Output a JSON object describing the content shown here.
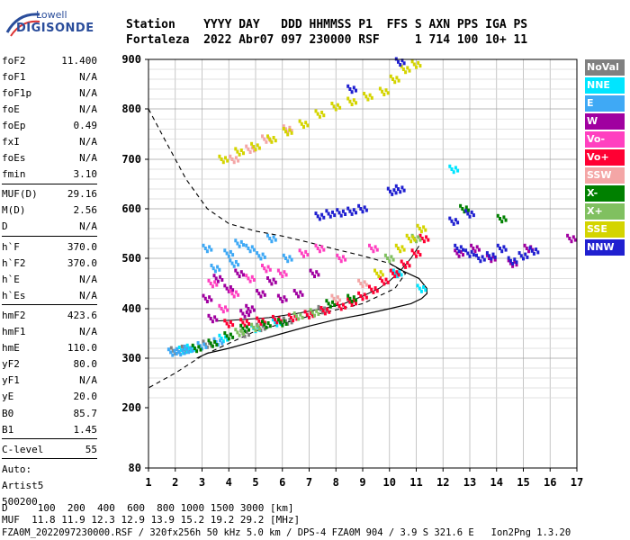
{
  "logo": {
    "brand": "Lowell",
    "product": "DIGISONDE"
  },
  "header": {
    "line1": "Station    YYYY DAY   DDD HHMMSS P1  FFS S AXN PPS IGA PS",
    "line2": "Fortaleza  2022 Abr07 097 230000 RSF     1 714 100 10+ 11"
  },
  "params": [
    {
      "name": "foF2",
      "value": "11.400"
    },
    {
      "name": "foF1",
      "value": "N/A"
    },
    {
      "name": "foF1p",
      "value": "N/A"
    },
    {
      "name": "foE",
      "value": "N/A"
    },
    {
      "name": "foEp",
      "value": "0.49"
    },
    {
      "name": "fxI",
      "value": "N/A"
    },
    {
      "name": "foEs",
      "value": "N/A"
    },
    {
      "name": "fmin",
      "value": "3.10"
    },
    {
      "sep": true
    },
    {
      "name": "MUF(D)",
      "value": "29.16"
    },
    {
      "name": "M(D)",
      "value": "2.56"
    },
    {
      "name": "D",
      "value": "N/A"
    },
    {
      "sep": true
    },
    {
      "name": "h`F",
      "value": "370.0"
    },
    {
      "name": "h`F2",
      "value": "370.0"
    },
    {
      "name": "h`E",
      "value": "N/A"
    },
    {
      "name": "h`Es",
      "value": "N/A"
    },
    {
      "sep": true
    },
    {
      "name": "hmF2",
      "value": "423.6"
    },
    {
      "name": "hmF1",
      "value": "N/A"
    },
    {
      "name": "hmE",
      "value": "110.0"
    },
    {
      "name": "yF2",
      "value": "80.0"
    },
    {
      "name": "yF1",
      "value": "N/A"
    },
    {
      "name": "yE",
      "value": "20.0"
    },
    {
      "name": "B0",
      "value": "85.7"
    },
    {
      "name": "B1",
      "value": "1.45"
    },
    {
      "sep": true
    },
    {
      "name": "C-level",
      "value": "55"
    },
    {
      "sep": true
    },
    {
      "name": "Auto:",
      "value": ""
    },
    {
      "name": "Artist5",
      "value": ""
    },
    {
      "name": "500200",
      "value": ""
    }
  ],
  "legend": [
    {
      "label": "NoVal",
      "color": "#808080"
    },
    {
      "label": "NNE",
      "color": "#00e5ff"
    },
    {
      "label": "E",
      "color": "#3fa9f5"
    },
    {
      "label": "W",
      "color": "#a000a0"
    },
    {
      "label": "Vo-",
      "color": "#ff40c0"
    },
    {
      "label": "Vo+",
      "color": "#ff0033"
    },
    {
      "label": "SSW",
      "color": "#f4a6a6"
    },
    {
      "label": "X-",
      "color": "#008000"
    },
    {
      "label": "X+",
      "color": "#80c060"
    },
    {
      "label": "SSE",
      "color": "#d4d400"
    },
    {
      "label": "NNW",
      "color": "#2020d0"
    }
  ],
  "footer": {
    "line1": "D     100  200  400  600  800 1000 1500 3000 [km]",
    "line2": "MUF  11.8 11.9 12.3 12.9 13.9 15.2 19.2 29.2 [MHz]",
    "line3": "FZA0M_2022097230000.RSF / 320fx256h 50 kHz 5.0 km / DPS-4 FZA0M 904 / 3.9 S 321.6 E   Ion2Png 1.3.20"
  },
  "chart_data": {
    "type": "scatter",
    "title": "",
    "xlabel": "",
    "ylabel": "",
    "xlim": [
      1,
      17
    ],
    "ylim": [
      80,
      900
    ],
    "x_ticks": [
      1,
      2,
      3,
      4,
      5,
      6,
      7,
      8,
      9,
      10,
      11,
      12,
      13,
      14,
      15,
      16,
      17
    ],
    "y_ticks": [
      80,
      200,
      300,
      400,
      500,
      600,
      700,
      800,
      900
    ],
    "y_axis_labeled_ticks": [
      80,
      200,
      300,
      400,
      500,
      600,
      700,
      800,
      900
    ],
    "grid": true,
    "series": [
      {
        "name": "NoVal",
        "color": "#808080",
        "points": [
          [
            2.0,
            315
          ],
          [
            2.4,
            318
          ],
          [
            3.2,
            328
          ],
          [
            4.6,
            350
          ],
          [
            5.2,
            362
          ],
          [
            6.2,
            375
          ],
          [
            7.5,
            398
          ]
        ]
      },
      {
        "name": "NNE",
        "color": "#00e5ff",
        "points": [
          [
            2.3,
            316
          ],
          [
            2.6,
            320
          ],
          [
            3.8,
            340
          ],
          [
            5.0,
            360
          ],
          [
            5.8,
            372
          ],
          [
            10.3,
            470
          ],
          [
            11.2,
            440
          ],
          [
            12.4,
            680
          ]
        ]
      },
      {
        "name": "E",
        "color": "#3fa9f5",
        "points": [
          [
            1.9,
            312
          ],
          [
            2.2,
            313
          ],
          [
            2.5,
            318
          ],
          [
            3.0,
            325
          ],
          [
            3.6,
            333
          ],
          [
            4.0,
            510
          ],
          [
            4.4,
            530
          ],
          [
            4.8,
            520
          ],
          [
            5.2,
            505
          ],
          [
            5.6,
            540
          ],
          [
            6.2,
            500
          ],
          [
            3.5,
            480
          ],
          [
            3.2,
            520
          ],
          [
            4.2,
            490
          ]
        ]
      },
      {
        "name": "W",
        "color": "#a000a0",
        "points": [
          [
            3.2,
            420
          ],
          [
            3.6,
            460
          ],
          [
            4.0,
            440
          ],
          [
            4.4,
            470
          ],
          [
            4.8,
            400
          ],
          [
            5.2,
            430
          ],
          [
            5.6,
            455
          ],
          [
            6.0,
            420
          ],
          [
            6.6,
            430
          ],
          [
            7.2,
            470
          ],
          [
            3.4,
            380
          ],
          [
            4.6,
            390
          ],
          [
            12.6,
            510
          ],
          [
            13.2,
            520
          ],
          [
            13.8,
            500
          ],
          [
            14.6,
            490
          ],
          [
            15.2,
            520
          ],
          [
            16.8,
            540
          ]
        ]
      },
      {
        "name": "Vo-",
        "color": "#ff40c0",
        "points": [
          [
            3.4,
            450
          ],
          [
            3.8,
            400
          ],
          [
            4.2,
            430
          ],
          [
            4.8,
            460
          ],
          [
            5.4,
            480
          ],
          [
            6.0,
            470
          ],
          [
            6.8,
            510
          ],
          [
            7.4,
            520
          ],
          [
            8.2,
            500
          ],
          [
            9.4,
            520
          ]
        ]
      },
      {
        "name": "Vo+",
        "color": "#ff0033",
        "points": [
          [
            4.0,
            370
          ],
          [
            4.6,
            372
          ],
          [
            5.2,
            375
          ],
          [
            5.8,
            378
          ],
          [
            6.4,
            382
          ],
          [
            7.0,
            388
          ],
          [
            7.6,
            396
          ],
          [
            8.2,
            405
          ],
          [
            8.6,
            413
          ],
          [
            9.0,
            425
          ],
          [
            9.4,
            438
          ],
          [
            9.8,
            455
          ],
          [
            10.2,
            470
          ],
          [
            10.6,
            488
          ],
          [
            11.0,
            510
          ],
          [
            11.3,
            540
          ]
        ]
      },
      {
        "name": "SSW",
        "color": "#f4a6a6",
        "points": [
          [
            4.2,
            700
          ],
          [
            4.8,
            720
          ],
          [
            5.4,
            740
          ],
          [
            6.2,
            760
          ],
          [
            8.0,
            420
          ],
          [
            9.0,
            450
          ]
        ]
      },
      {
        "name": "X-",
        "color": "#008000",
        "points": [
          [
            2.8,
            320
          ],
          [
            3.4,
            330
          ],
          [
            4.0,
            345
          ],
          [
            4.6,
            360
          ],
          [
            5.4,
            368
          ],
          [
            6.0,
            372
          ],
          [
            7.8,
            410
          ],
          [
            8.6,
            420
          ],
          [
            12.8,
            600
          ],
          [
            14.2,
            580
          ]
        ]
      },
      {
        "name": "X+",
        "color": "#80c060",
        "points": [
          [
            4.4,
            352
          ],
          [
            5.0,
            362
          ],
          [
            6.6,
            385
          ],
          [
            7.2,
            392
          ],
          [
            10.0,
            500
          ],
          [
            11.0,
            540
          ]
        ]
      },
      {
        "name": "SSE",
        "color": "#d4d400",
        "points": [
          [
            3.8,
            700
          ],
          [
            4.4,
            715
          ],
          [
            5.0,
            725
          ],
          [
            5.6,
            740
          ],
          [
            6.2,
            755
          ],
          [
            6.8,
            770
          ],
          [
            7.4,
            790
          ],
          [
            8.0,
            805
          ],
          [
            8.6,
            815
          ],
          [
            9.2,
            825
          ],
          [
            9.8,
            835
          ],
          [
            10.2,
            860
          ],
          [
            10.6,
            880
          ],
          [
            11.0,
            890
          ],
          [
            10.8,
            540
          ],
          [
            11.2,
            560
          ],
          [
            9.6,
            470
          ],
          [
            10.4,
            520
          ]
        ]
      },
      {
        "name": "NNW",
        "color": "#2020d0",
        "points": [
          [
            7.4,
            585
          ],
          [
            7.8,
            590
          ],
          [
            8.2,
            592
          ],
          [
            8.6,
            595
          ],
          [
            9.0,
            600
          ],
          [
            10.1,
            635
          ],
          [
            10.4,
            640
          ],
          [
            12.6,
            520
          ],
          [
            13.0,
            510
          ],
          [
            13.4,
            500
          ],
          [
            13.8,
            505
          ],
          [
            14.2,
            520
          ],
          [
            14.6,
            495
          ],
          [
            15.0,
            505
          ],
          [
            15.4,
            515
          ],
          [
            12.4,
            575
          ],
          [
            13.0,
            590
          ],
          [
            8.6,
            840
          ],
          [
            10.4,
            895
          ]
        ]
      }
    ],
    "profile_curve": {
      "points": [
        [
          2.8,
          300
        ],
        [
          3.2,
          310
        ],
        [
          4.0,
          320
        ],
        [
          5.0,
          335
        ],
        [
          6.0,
          350
        ],
        [
          7.0,
          365
        ],
        [
          8.0,
          378
        ],
        [
          9.0,
          388
        ],
        [
          10.0,
          400
        ],
        [
          10.8,
          410
        ],
        [
          11.2,
          420
        ],
        [
          11.4,
          430
        ],
        [
          11.4,
          440
        ],
        [
          11.1,
          460
        ],
        [
          10.5,
          475
        ],
        [
          10.0,
          490
        ]
      ]
    },
    "trace_curve": {
      "points": [
        [
          3.5,
          375
        ],
        [
          4.5,
          378
        ],
        [
          5.5,
          382
        ],
        [
          6.5,
          390
        ],
        [
          7.5,
          400
        ],
        [
          8.3,
          410
        ],
        [
          9.0,
          425
        ],
        [
          9.6,
          440
        ],
        [
          10.0,
          455
        ],
        [
          10.4,
          475
        ],
        [
          10.8,
          500
        ],
        [
          11.1,
          525
        ]
      ]
    },
    "muf_dashed_curve": {
      "points": [
        [
          1.0,
          800
        ],
        [
          1.6,
          740
        ],
        [
          2.4,
          660
        ],
        [
          3.2,
          600
        ],
        [
          4.0,
          570
        ],
        [
          5.0,
          555
        ],
        [
          6.0,
          545
        ],
        [
          7.0,
          532
        ],
        [
          8.0,
          518
        ],
        [
          9.0,
          505
        ],
        [
          10.0,
          490
        ],
        [
          10.6,
          470
        ],
        [
          10.2,
          440
        ],
        [
          9.0,
          410
        ],
        [
          7.0,
          385
        ],
        [
          5.0,
          355
        ],
        [
          3.0,
          305
        ],
        [
          2.0,
          270
        ],
        [
          1.0,
          240
        ]
      ]
    }
  }
}
